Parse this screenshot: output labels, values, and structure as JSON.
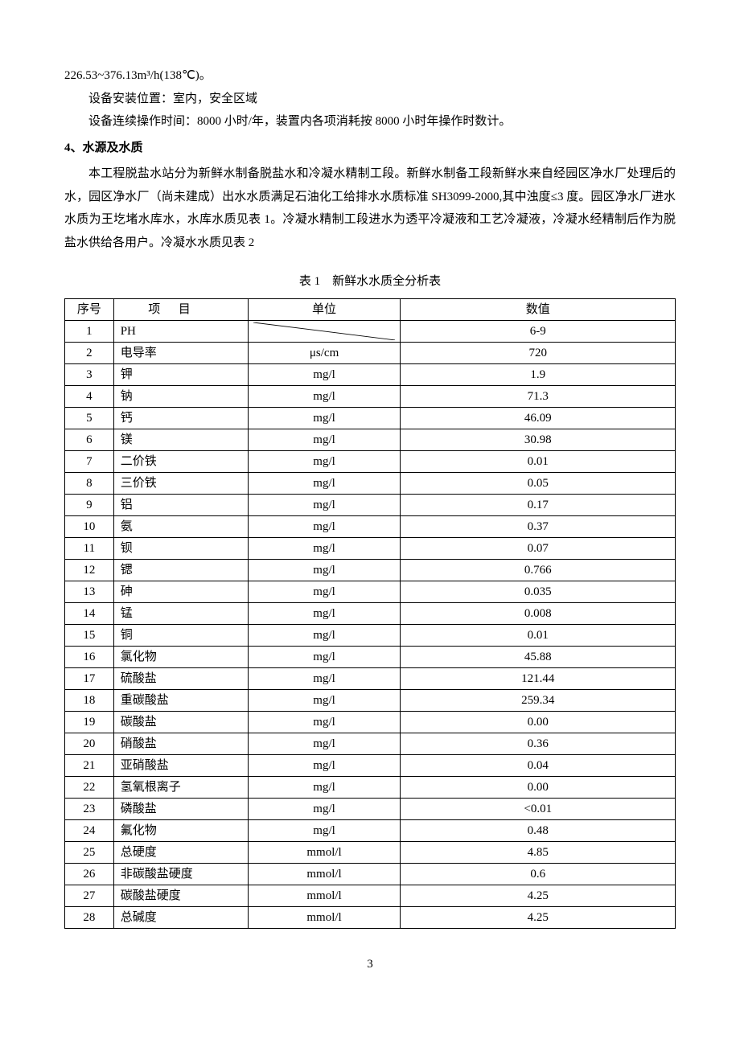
{
  "paragraphs": {
    "p1": "226.53~376.13m³/h(138℃)。",
    "p2": "设备安装位置：室内，安全区域",
    "p3": "设备连续操作时间：8000 小时/年，装置内各项消耗按 8000 小时年操作时数计。",
    "heading4": "4、水源及水质",
    "p4a": "本工程脱盐水站分为新鲜水制备脱盐水和冷凝水精制工段。新鲜水制备工段新鲜水来自经园区净水厂处理后的水，园区净水厂（尚未建成）出水水质满足石油化工给排水水质标准 SH3099-2000,其中浊度≤3 度。园区净水厂进水水质为王圪堵水库水，水库水质见表 1。冷凝水精制工段进水为透平冷凝液和工艺冷凝液，冷凝水经精制后作为脱盐水供给各用户。冷凝水水质见表 2"
  },
  "table1": {
    "caption": "表 1　新鲜水水质全分析表",
    "headers": {
      "seq": "序号",
      "item": "项目",
      "unit": "单位",
      "value": "数值"
    },
    "rows": [
      {
        "seq": "1",
        "item": "PH",
        "unit": "",
        "value": "6-9"
      },
      {
        "seq": "2",
        "item": "电导率",
        "unit": "μs/cm",
        "value": "720"
      },
      {
        "seq": "3",
        "item": "钾",
        "unit": "mg/l",
        "value": "1.9"
      },
      {
        "seq": "4",
        "item": "钠",
        "unit": "mg/l",
        "value": "71.3"
      },
      {
        "seq": "5",
        "item": "钙",
        "unit": "mg/l",
        "value": "46.09"
      },
      {
        "seq": "6",
        "item": "镁",
        "unit": "mg/l",
        "value": "30.98"
      },
      {
        "seq": "7",
        "item": "二价铁",
        "unit": "mg/l",
        "value": "0.01"
      },
      {
        "seq": "8",
        "item": "三价铁",
        "unit": "mg/l",
        "value": "0.05"
      },
      {
        "seq": "9",
        "item": "铝",
        "unit": "mg/l",
        "value": "0.17"
      },
      {
        "seq": "10",
        "item": "氨",
        "unit": "mg/l",
        "value": "0.37"
      },
      {
        "seq": "11",
        "item": "钡",
        "unit": "mg/l",
        "value": "0.07"
      },
      {
        "seq": "12",
        "item": "锶",
        "unit": "mg/l",
        "value": "0.766"
      },
      {
        "seq": "13",
        "item": "砷",
        "unit": "mg/l",
        "value": "0.035"
      },
      {
        "seq": "14",
        "item": "锰",
        "unit": "mg/l",
        "value": "0.008"
      },
      {
        "seq": "15",
        "item": "铜",
        "unit": "mg/l",
        "value": "0.01"
      },
      {
        "seq": "16",
        "item": "氯化物",
        "unit": "mg/l",
        "value": "45.88"
      },
      {
        "seq": "17",
        "item": "硫酸盐",
        "unit": "mg/l",
        "value": "121.44"
      },
      {
        "seq": "18",
        "item": "重碳酸盐",
        "unit": "mg/l",
        "value": "259.34"
      },
      {
        "seq": "19",
        "item": "碳酸盐",
        "unit": "mg/l",
        "value": "0.00"
      },
      {
        "seq": "20",
        "item": "硝酸盐",
        "unit": "mg/l",
        "value": "0.36"
      },
      {
        "seq": "21",
        "item": "亚硝酸盐",
        "unit": "mg/l",
        "value": "0.04"
      },
      {
        "seq": "22",
        "item": "氢氧根离子",
        "unit": "mg/l",
        "value": "0.00"
      },
      {
        "seq": "23",
        "item": "磷酸盐",
        "unit": "mg/l",
        "value": "<0.01"
      },
      {
        "seq": "24",
        "item": "氟化物",
        "unit": "mg/l",
        "value": "0.48"
      },
      {
        "seq": "25",
        "item": "总硬度",
        "unit": "mmol/l",
        "value": "4.85"
      },
      {
        "seq": "26",
        "item": "非碳酸盐硬度",
        "unit": "mmol/l",
        "value": "0.6"
      },
      {
        "seq": "27",
        "item": "碳酸盐硬度",
        "unit": "mmol/l",
        "value": "4.25"
      },
      {
        "seq": "28",
        "item": "总碱度",
        "unit": "mmol/l",
        "value": "4.25"
      }
    ]
  },
  "pageNumber": "3"
}
